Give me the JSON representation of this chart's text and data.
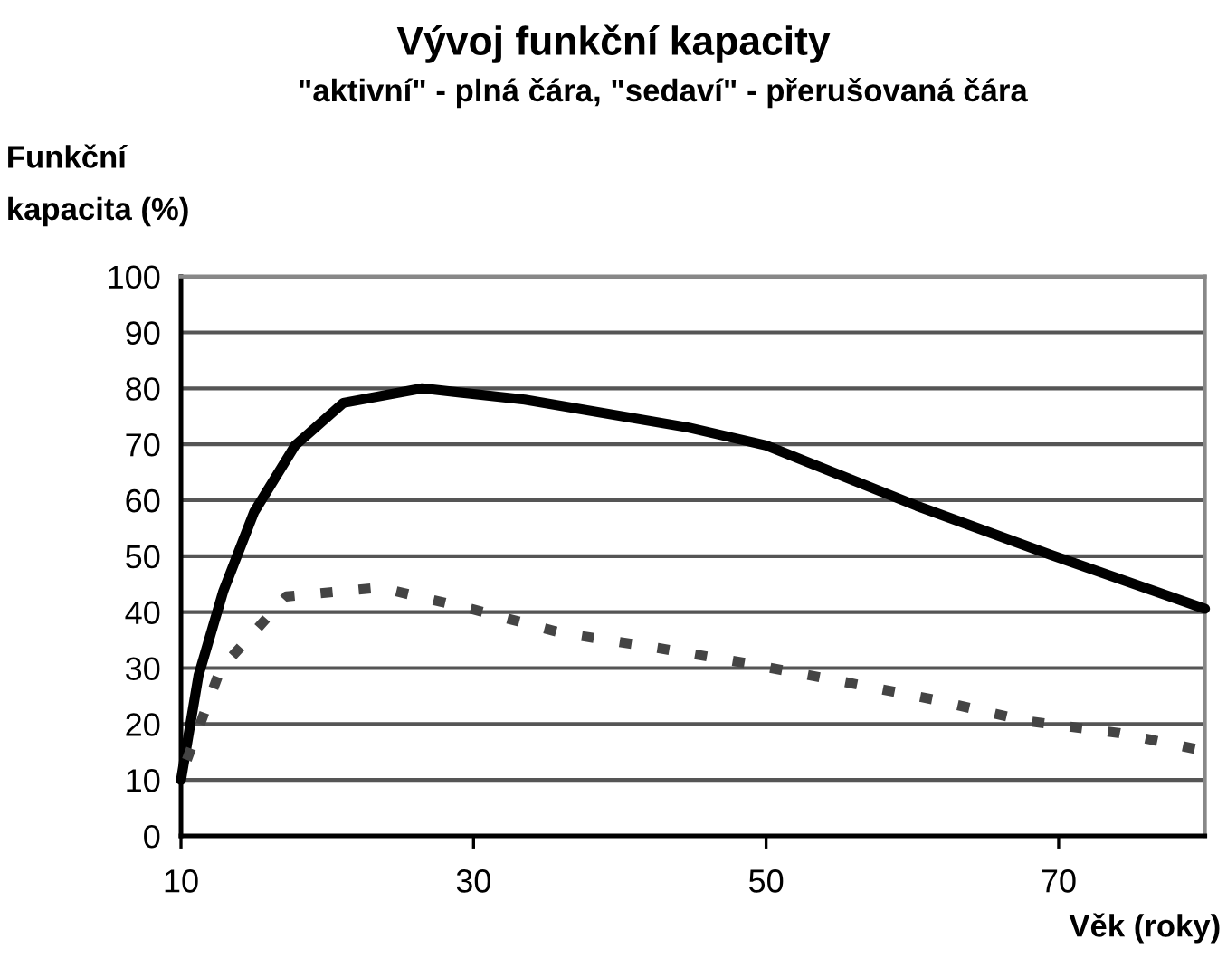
{
  "chart_data": {
    "type": "line",
    "title": "Vývoj funkční kapacity",
    "subtitle": "\"aktivní\" - plná čára, \"sedaví\" - přerušovaná čára",
    "xlabel": "Věk (roky)",
    "ylabel": "Funkční\nkapacita (%)",
    "series": [
      {
        "color": "#000000",
        "line_style": "solid",
        "x": [
          10,
          11.2,
          12.9,
          15,
          17.8,
          21.1,
          26.5,
          33.5,
          44.7,
          50,
          60.3,
          69.4,
          80
        ],
        "values": [
          10,
          28.7,
          43.8,
          57.9,
          69.8,
          77.4,
          80,
          78,
          73,
          69.8,
          59,
          50.3,
          40.6
        ]
      },
      {
        "color": "#444444",
        "line_style": "dashed",
        "x": [
          10.4,
          12.7,
          17.2,
          23.6,
          29.8,
          36,
          42.6,
          48.8,
          55.2,
          61.4,
          67.7,
          74.1,
          80
        ],
        "values": [
          13.6,
          29.8,
          42.8,
          44.4,
          40.6,
          36.3,
          33.6,
          30.8,
          27.6,
          24.4,
          20.6,
          18.4,
          15.2
        ]
      }
    ],
    "xlim": [
      10,
      80
    ],
    "xticks": [
      10,
      30,
      50,
      70
    ],
    "ylim": [
      0,
      100
    ],
    "yticks": [
      0,
      10,
      20,
      30,
      40,
      50,
      60,
      70,
      80,
      90,
      100
    ],
    "grid": "y",
    "legend": false,
    "marker": "none"
  }
}
